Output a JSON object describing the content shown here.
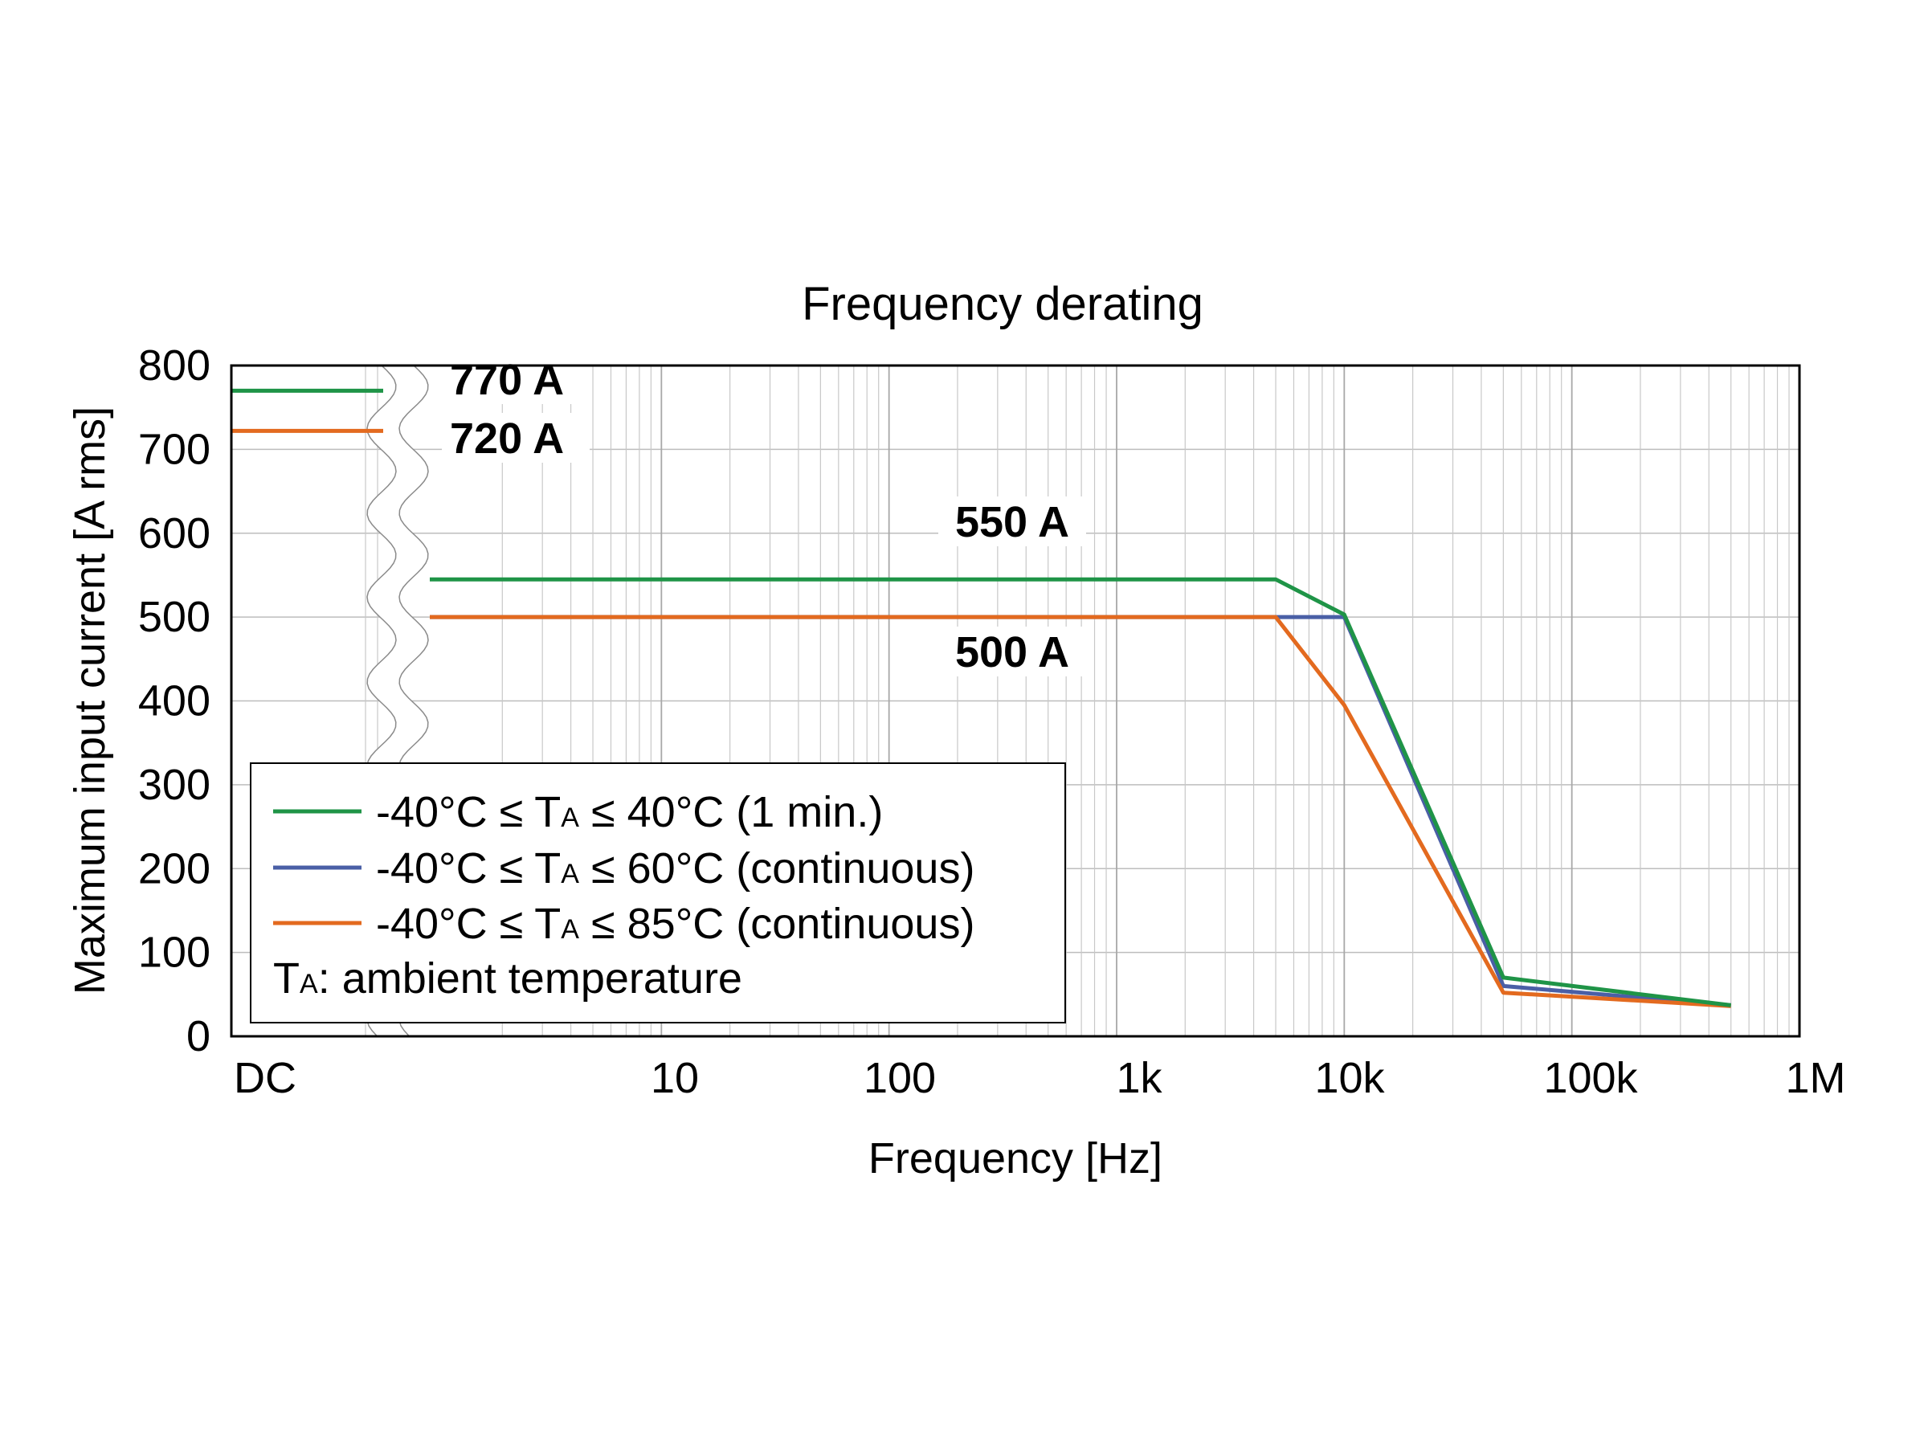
{
  "chart_data": {
    "type": "line",
    "title": "Frequency derating",
    "xlabel": "Frequency [Hz]",
    "ylabel": "Maximum input current [A rms]",
    "x_scale": "log",
    "x_axis_break": "between DC and the logarithmic frequency range",
    "xlim": [
      1,
      1000000
    ],
    "ylim": [
      0,
      800
    ],
    "grid": true,
    "x_ticks": [
      {
        "label": "DC"
      },
      {
        "label": "10",
        "value": 10
      },
      {
        "label": "100",
        "value": 100
      },
      {
        "label": "1k",
        "value": 1000
      },
      {
        "label": "10k",
        "value": 10000
      },
      {
        "label": "100k",
        "value": 100000
      },
      {
        "label": "1M",
        "value": 1000000
      }
    ],
    "y_ticks": [
      "0",
      "100",
      "200",
      "300",
      "400",
      "500",
      "600",
      "700",
      "800"
    ],
    "series": [
      {
        "name": "-40°C ≤ TA ≤ 40°C (1 min.)",
        "color": "#1f9447",
        "dc_value": 770,
        "points": [
          [
            1,
            545
          ],
          [
            5000,
            545
          ],
          [
            10000,
            503
          ],
          [
            50000,
            70
          ],
          [
            500000,
            37
          ]
        ]
      },
      {
        "name": "-40°C ≤ TA ≤ 60°C (continuous)",
        "color": "#4a5fa6",
        "dc_value": 770,
        "points": [
          [
            1,
            500
          ],
          [
            5000,
            500
          ],
          [
            10000,
            500
          ],
          [
            50000,
            60
          ],
          [
            500000,
            37
          ]
        ]
      },
      {
        "name": "-40°C ≤ TA ≤ 85°C (continuous)",
        "color": "#e36a1f",
        "dc_value": 722,
        "points": [
          [
            1,
            500
          ],
          [
            5000,
            500
          ],
          [
            10000,
            395
          ],
          [
            50000,
            52
          ],
          [
            500000,
            36
          ]
        ]
      }
    ],
    "annotations": [
      {
        "text": "770 A",
        "x": "DC",
        "y": 770
      },
      {
        "text": "720 A",
        "x": "DC",
        "y": 720
      },
      {
        "text": "550 A",
        "x": 300,
        "y": 600
      },
      {
        "text": "500 A",
        "x": 300,
        "y": 445
      }
    ],
    "legend": {
      "position": "bottom-left",
      "entries": [
        {
          "prefix": "-40°C ≤ T",
          "sub": "A",
          "suffix": " ≤ 40°C (1 min.)",
          "color": "#1f9447"
        },
        {
          "prefix": "-40°C ≤ T",
          "sub": "A",
          "suffix": " ≤ 60°C (continuous)",
          "color": "#4a5fa6"
        },
        {
          "prefix": "-40°C ≤ T",
          "sub": "A",
          "suffix": " ≤ 85°C (continuous)",
          "color": "#e36a1f"
        }
      ],
      "note": {
        "prefix": "T",
        "sub": "A",
        "suffix": ": ambient temperature"
      }
    }
  }
}
